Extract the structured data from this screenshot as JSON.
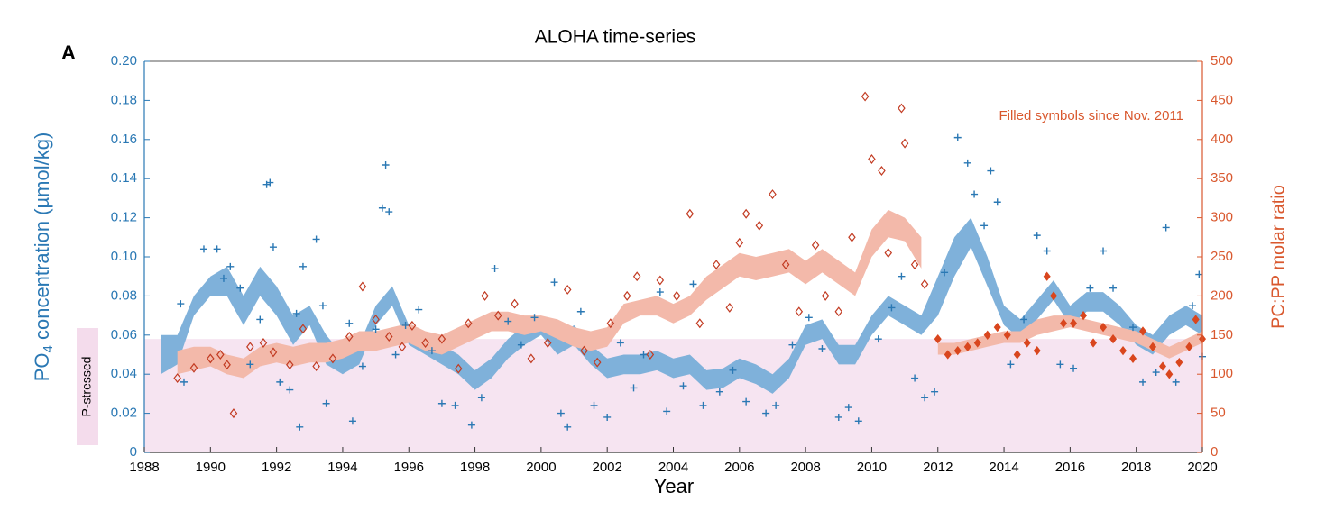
{
  "chart_data": {
    "type": "scatter",
    "panel_label": "A",
    "title": "ALOHA time-series",
    "xlabel": "Year",
    "ylabel": [
      "PO",
      "4",
      " concentration (µmol/kg)"
    ],
    "y2label": "PC:PP molar ratio",
    "annotation": "Filled symbols since Nov. 2011",
    "p_stressed_label": "P-stressed",
    "p_stressed_threshold": 0.058,
    "xlim": [
      1988,
      2020
    ],
    "xticks": [
      1988,
      1990,
      1992,
      1994,
      1996,
      1998,
      2000,
      2002,
      2004,
      2006,
      2008,
      2010,
      2012,
      2014,
      2016,
      2018,
      2020
    ],
    "ylim": [
      0,
      0.2
    ],
    "yticks": [
      0,
      0.02,
      0.04,
      0.06,
      0.08,
      {
        "value": 0.1,
        "label": "0.10"
      },
      0.12,
      0.14,
      0.16,
      0.18,
      {
        "value": 0.2,
        "label": "0.20"
      }
    ],
    "y2lim": [
      0,
      500
    ],
    "y2ticks": [
      0,
      50,
      100,
      150,
      200,
      250,
      300,
      350,
      400,
      450,
      500
    ],
    "bands": [
      {
        "axis": "y",
        "color": "#7fb1da",
        "x": [
          1988.5,
          1989,
          1989.5,
          1990,
          1990.5,
          1991,
          1991.5,
          1992,
          1992.5,
          1993,
          1993.5,
          1994,
          1994.5,
          1995,
          1995.5,
          1996,
          1996.5,
          1997,
          1997.5,
          1998,
          1998.5,
          1999,
          1999.5,
          2000,
          2000.5,
          2001,
          2001.5,
          2002,
          2002.5,
          2003,
          2003.5,
          2004,
          2004.5,
          2005,
          2005.5,
          2006,
          2006.5,
          2007,
          2007.5,
          2008,
          2008.5,
          2009,
          2009.5,
          2010,
          2010.5,
          2011,
          2011.5,
          2012,
          2012.5,
          2013,
          2013.5,
          2014,
          2014.5,
          2015,
          2015.5,
          2016,
          2016.5,
          2017,
          2017.5,
          2018,
          2018.5,
          2019,
          2019.5,
          2020
        ],
        "lower": [
          0.04,
          0.045,
          0.07,
          0.08,
          0.08,
          0.065,
          0.08,
          0.07,
          0.055,
          0.065,
          0.045,
          0.04,
          0.045,
          0.065,
          0.075,
          0.055,
          0.05,
          0.045,
          0.04,
          0.032,
          0.038,
          0.048,
          0.055,
          0.06,
          0.05,
          0.055,
          0.045,
          0.038,
          0.04,
          0.04,
          0.042,
          0.038,
          0.04,
          0.032,
          0.033,
          0.038,
          0.035,
          0.03,
          0.038,
          0.055,
          0.058,
          0.045,
          0.045,
          0.06,
          0.07,
          0.065,
          0.06,
          0.07,
          0.09,
          0.105,
          0.085,
          0.065,
          0.058,
          0.068,
          0.078,
          0.065,
          0.072,
          0.072,
          0.065,
          0.055,
          0.05,
          0.06,
          0.065,
          0.06
        ],
        "upper": [
          0.06,
          0.06,
          0.08,
          0.09,
          0.095,
          0.08,
          0.095,
          0.085,
          0.07,
          0.075,
          0.06,
          0.05,
          0.055,
          0.075,
          0.085,
          0.065,
          0.06,
          0.055,
          0.05,
          0.042,
          0.048,
          0.058,
          0.065,
          0.07,
          0.06,
          0.065,
          0.055,
          0.048,
          0.05,
          0.05,
          0.052,
          0.048,
          0.05,
          0.042,
          0.043,
          0.048,
          0.045,
          0.04,
          0.048,
          0.065,
          0.068,
          0.055,
          0.055,
          0.07,
          0.08,
          0.075,
          0.07,
          0.09,
          0.11,
          0.12,
          0.1,
          0.075,
          0.068,
          0.078,
          0.088,
          0.075,
          0.082,
          0.082,
          0.075,
          0.065,
          0.06,
          0.07,
          0.075,
          0.07
        ]
      },
      {
        "axis": "y2",
        "color": "#f3b9aa",
        "x": [
          1989,
          1989.5,
          1990,
          1990.5,
          1991,
          1991.5,
          1992,
          1992.5,
          1993,
          1993.5,
          1994,
          1994.5,
          1995,
          1995.5,
          1996,
          1996.5,
          1997,
          1997.5,
          1998,
          1998.5,
          1999,
          1999.5,
          2000,
          2000.5,
          2001,
          2001.5,
          2002,
          2002.5,
          2003,
          2003.5,
          2004,
          2004.5,
          2005,
          2005.5,
          2006,
          2006.5,
          2007,
          2007.5,
          2008,
          2008.5,
          2009,
          2009.5,
          2010,
          2010.5,
          2011,
          2011.5,
          2011.85,
          2012,
          2012.5,
          2013,
          2013.5,
          2014,
          2014.5,
          2015,
          2015.5,
          2016,
          2016.5,
          2017,
          2017.5,
          2018,
          2018.5,
          2019,
          2019.5,
          2020
        ],
        "lower": [
          100,
          105,
          110,
          100,
          95,
          110,
          115,
          110,
          115,
          115,
          120,
          130,
          130,
          135,
          140,
          130,
          125,
          135,
          145,
          155,
          155,
          150,
          155,
          145,
          135,
          130,
          135,
          165,
          175,
          175,
          165,
          175,
          195,
          210,
          225,
          220,
          225,
          230,
          215,
          230,
          215,
          200,
          250,
          275,
          270,
          235,
          null,
          125,
          125,
          130,
          135,
          140,
          140,
          150,
          155,
          160,
          155,
          150,
          145,
          140,
          130,
          120,
          130,
          140
        ],
        "upper": [
          130,
          135,
          135,
          125,
          120,
          135,
          140,
          135,
          140,
          140,
          145,
          155,
          155,
          160,
          165,
          155,
          150,
          160,
          170,
          180,
          180,
          175,
          175,
          170,
          160,
          155,
          160,
          190,
          195,
          200,
          190,
          200,
          225,
          240,
          255,
          250,
          255,
          260,
          245,
          260,
          245,
          230,
          285,
          310,
          300,
          275,
          null,
          140,
          140,
          145,
          150,
          155,
          155,
          170,
          175,
          175,
          170,
          165,
          160,
          155,
          145,
          135,
          145,
          155
        ]
      }
    ],
    "series": [
      {
        "axis": "y",
        "marker": "plus",
        "color": "#2a78b4",
        "x": [
          1989.1,
          1989.2,
          1989.8,
          1990.2,
          1990.4,
          1990.6,
          1990.9,
          1991.2,
          1991.5,
          1991.7,
          1991.8,
          1991.9,
          1992.1,
          1992.4,
          1992.6,
          1992.7,
          1992.8,
          1993.2,
          1993.4,
          1993.5,
          1994.2,
          1994.3,
          1994.6,
          1995.0,
          1995.2,
          1995.3,
          1995.4,
          1995.6,
          1995.9,
          1996.3,
          1996.7,
          1997.0,
          1997.4,
          1997.9,
          1998.2,
          1998.6,
          1999.0,
          1999.4,
          1999.8,
          2000.4,
          2000.6,
          2000.8,
          2001.2,
          2001.6,
          2002.0,
          2002.4,
          2002.8,
          2003.1,
          2003.6,
          2003.8,
          2004.3,
          2004.6,
          2004.9,
          2005.4,
          2005.8,
          2006.2,
          2006.8,
          2007.1,
          2007.6,
          2008.1,
          2008.5,
          2009.0,
          2009.3,
          2009.6,
          2010.2,
          2010.6,
          2010.9,
          2011.3,
          2011.6,
          2011.9,
          2012.2,
          2012.6,
          2012.9,
          2013.1,
          2013.4,
          2013.6,
          2013.8,
          2014.2,
          2014.6,
          2015.0,
          2015.3,
          2015.7,
          2016.1,
          2016.6,
          2017.0,
          2017.3,
          2017.9,
          2018.2,
          2018.6,
          2018.9,
          2019.2,
          2019.7,
          2019.9,
          2020.0
        ],
        "values": [
          0.076,
          0.036,
          0.104,
          0.104,
          0.089,
          0.095,
          0.084,
          0.045,
          0.068,
          0.137,
          0.138,
          0.105,
          0.036,
          0.032,
          0.071,
          0.013,
          0.095,
          0.109,
          0.075,
          0.025,
          0.066,
          0.016,
          0.044,
          0.063,
          0.125,
          0.147,
          0.123,
          0.05,
          0.065,
          0.073,
          0.052,
          0.025,
          0.024,
          0.014,
          0.028,
          0.094,
          0.067,
          0.055,
          0.069,
          0.087,
          0.02,
          0.013,
          0.072,
          0.024,
          0.018,
          0.056,
          0.033,
          0.05,
          0.082,
          0.021,
          0.034,
          0.086,
          0.024,
          0.031,
          0.042,
          0.026,
          0.02,
          0.024,
          0.055,
          0.069,
          0.053,
          0.018,
          0.023,
          0.016,
          0.058,
          0.074,
          0.09,
          0.038,
          0.028,
          0.031,
          0.092,
          0.161,
          0.148,
          0.132,
          0.116,
          0.144,
          0.128,
          0.045,
          0.068,
          0.111,
          0.103,
          0.045,
          0.043,
          0.084,
          0.103,
          0.084,
          0.064,
          0.036,
          0.041,
          0.115,
          0.036,
          0.075,
          0.091,
          0.049
        ]
      },
      {
        "axis": "y2",
        "marker": "diamond-open",
        "color": "#c23b22",
        "x": [
          1989.0,
          1989.5,
          1990.0,
          1990.3,
          1990.5,
          1990.7,
          1991.2,
          1991.6,
          1991.9,
          1992.4,
          1992.8,
          1993.2,
          1993.7,
          1994.2,
          1994.6,
          1995.0,
          1995.4,
          1995.8,
          1996.1,
          1996.5,
          1997.0,
          1997.5,
          1997.8,
          1998.3,
          1998.7,
          1999.2,
          1999.7,
          2000.2,
          2000.8,
          2001.3,
          2001.7,
          2002.1,
          2002.6,
          2002.9,
          2003.3,
          2003.6,
          2004.1,
          2004.5,
          2004.8,
          2005.3,
          2005.7,
          2006.0,
          2006.2,
          2006.6,
          2007.0,
          2007.4,
          2007.8,
          2008.3,
          2008.6,
          2009.0,
          2009.4,
          2009.8,
          2010.0,
          2010.3,
          2010.5,
          2010.9,
          2011.0,
          2011.3,
          2011.6
        ],
        "values": [
          95,
          108,
          120,
          125,
          112,
          50,
          135,
          140,
          128,
          112,
          158,
          110,
          120,
          148,
          212,
          170,
          148,
          135,
          162,
          140,
          145,
          107,
          165,
          200,
          175,
          190,
          120,
          140,
          208,
          130,
          115,
          165,
          200,
          225,
          125,
          220,
          200,
          305,
          165,
          240,
          185,
          268,
          305,
          290,
          330,
          240,
          180,
          265,
          200,
          180,
          275,
          455,
          375,
          360,
          255,
          440,
          395,
          240,
          215
        ]
      },
      {
        "axis": "y2",
        "marker": "diamond-filled",
        "color": "#d9461e",
        "x": [
          2012.0,
          2012.3,
          2012.6,
          2012.9,
          2013.2,
          2013.5,
          2013.8,
          2014.1,
          2014.4,
          2014.7,
          2015.0,
          2015.3,
          2015.5,
          2015.8,
          2016.1,
          2016.4,
          2016.7,
          2017.0,
          2017.3,
          2017.6,
          2017.9,
          2018.2,
          2018.5,
          2018.8,
          2019.0,
          2019.3,
          2019.6,
          2019.8,
          2020.0
        ],
        "values": [
          145,
          125,
          130,
          135,
          140,
          150,
          160,
          150,
          125,
          140,
          130,
          225,
          200,
          165,
          165,
          175,
          140,
          160,
          145,
          130,
          120,
          155,
          135,
          110,
          100,
          115,
          135,
          170,
          145
        ]
      }
    ]
  }
}
